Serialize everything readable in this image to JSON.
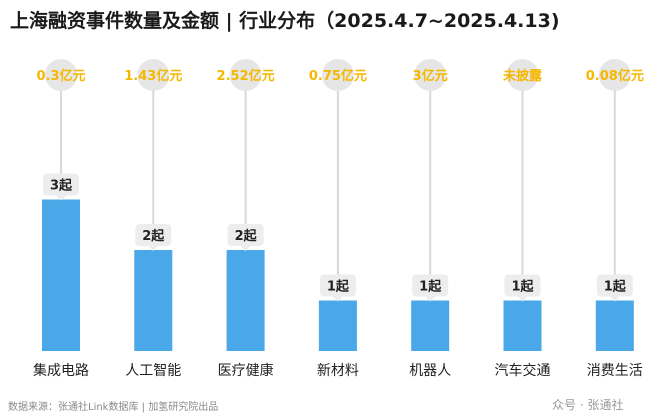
{
  "chart_data": {
    "type": "bar",
    "title": "上海融资事件数量及金额 | 行业分布（2025.4.7~2025.4.13)",
    "categories": [
      "集成电路",
      "人工智能",
      "医疗健康",
      "新材料",
      "机器人",
      "汽车交通",
      "消费生活"
    ],
    "values": [
      3,
      2,
      2,
      1,
      1,
      1,
      1
    ],
    "value_labels": [
      "3起",
      "2起",
      "2起",
      "1起",
      "1起",
      "1起",
      "1起"
    ],
    "amount_labels": [
      "0.3亿元",
      "1.43亿元",
      "2.52亿元",
      "0.75亿元",
      "3亿元",
      "未披露",
      "0.08亿元"
    ],
    "ylim": [
      0,
      3
    ],
    "grid": false,
    "bar_color": "#4AA8E8",
    "amount_color": "#F5B800",
    "bubble_color": "#E6E6E6",
    "stem_color": "#D9D9D9"
  },
  "footer": {
    "source": "数据来源：张通社Link数据库 | 加氢研究院出品",
    "watermark": "众号 · 张通社"
  }
}
